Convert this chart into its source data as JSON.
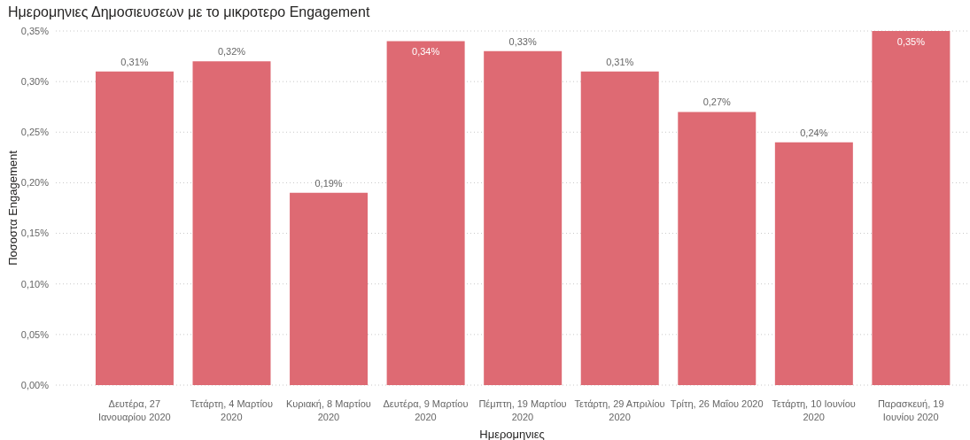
{
  "chart_data": {
    "type": "bar",
    "title": "Ημερομηνιες Δημοσιευσεων με το μικροτερο Engagement",
    "xlabel": "Ημερομηνιες",
    "ylabel": "Ποσοστα Engagement",
    "categories": [
      "Δευτέρα, 27 Ιανουαρίου 2020",
      "Τετάρτη, 4 Μαρτίου 2020",
      "Κυριακή, 8 Μαρτίου 2020",
      "Δευτέρα, 9 Μαρτίου 2020",
      "Πέμπτη, 19 Μαρτίου 2020",
      "Τετάρτη, 29 Απριλίου 2020",
      "Τρίτη, 26 Μαΐου 2020",
      "Τετάρτη, 10 Ιουνίου 2020",
      "Παρασκευή, 19 Ιουνίου 2020"
    ],
    "values": [
      0.31,
      0.32,
      0.19,
      0.34,
      0.33,
      0.31,
      0.27,
      0.24,
      0.35
    ],
    "value_labels": [
      "0,31%",
      "0,32%",
      "0,19%",
      "0,34%",
      "0,33%",
      "0,31%",
      "0,27%",
      "0,24%",
      "0,35%"
    ],
    "color": "#de6a73",
    "ylim": [
      0,
      0.35
    ],
    "yticks": [
      {
        "value": 0,
        "label": "0,00%"
      },
      {
        "value": 0.05,
        "label": "0,05%"
      },
      {
        "value": 0.1,
        "label": "0,10%"
      },
      {
        "value": 0.15,
        "label": "0,15%"
      },
      {
        "value": 0.2,
        "label": "0,20%"
      },
      {
        "value": 0.25,
        "label": "0,25%"
      },
      {
        "value": 0.3,
        "label": "0,30%"
      },
      {
        "value": 0.35,
        "label": "0,35%"
      }
    ],
    "grid": "y"
  }
}
